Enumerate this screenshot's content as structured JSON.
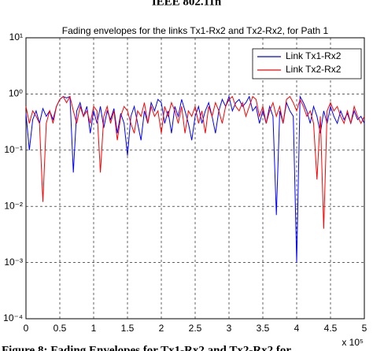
{
  "header_text": "IEEE 802.11n",
  "caption": "Figure 8: Fading Envelopes for Tx1-Rx2 and Tx2-Rx2 for",
  "chart_data": {
    "type": "line",
    "title": "Fading envelopes for the links Tx1-Rx2 and Tx2-Rx2, for Path 1",
    "x_exponent_label": "x 10⁵",
    "log_y": true,
    "grid": true,
    "legend": "upper right",
    "xlim": [
      0,
      5
    ],
    "xticks": [
      0,
      0.5,
      1,
      1.5,
      2,
      2.5,
      3,
      3.5,
      4,
      4.5,
      5
    ],
    "ylim": [
      0.0001,
      10
    ],
    "yticks": [
      {
        "value": 0.0001,
        "label": "10⁻⁴"
      },
      {
        "value": 0.001,
        "label": "10⁻³"
      },
      {
        "value": 0.01,
        "label": "10⁻²"
      },
      {
        "value": 0.1,
        "label": "10⁻¹"
      },
      {
        "value": 1,
        "label": "10⁰"
      },
      {
        "value": 10,
        "label": "10¹"
      }
    ],
    "x": [
      0,
      0.05,
      0.1,
      0.15,
      0.2,
      0.25,
      0.3,
      0.35,
      0.4,
      0.45,
      0.5,
      0.55,
      0.6,
      0.65,
      0.7,
      0.75,
      0.8,
      0.85,
      0.9,
      0.95,
      1,
      1.05,
      1.1,
      1.15,
      1.2,
      1.25,
      1.3,
      1.35,
      1.4,
      1.45,
      1.5,
      1.55,
      1.6,
      1.65,
      1.7,
      1.75,
      1.8,
      1.85,
      1.9,
      1.95,
      2,
      2.05,
      2.1,
      2.15,
      2.2,
      2.25,
      2.3,
      2.35,
      2.4,
      2.45,
      2.5,
      2.55,
      2.6,
      2.65,
      2.7,
      2.75,
      2.8,
      2.85,
      2.9,
      2.95,
      3,
      3.05,
      3.1,
      3.15,
      3.2,
      3.25,
      3.3,
      3.35,
      3.4,
      3.45,
      3.5,
      3.55,
      3.6,
      3.65,
      3.7,
      3.75,
      3.8,
      3.85,
      3.9,
      3.95,
      4,
      4.05,
      4.1,
      4.15,
      4.2,
      4.25,
      4.3,
      4.35,
      4.4,
      4.45,
      4.5,
      4.55,
      4.6,
      4.65,
      4.7,
      4.75,
      4.8,
      4.85,
      4.9,
      4.95,
      5
    ],
    "series": [
      {
        "name": "Link Tx1-Rx2",
        "color": "#0000ff",
        "values": [
          0.45,
          0.1,
          0.35,
          0.5,
          0.3,
          0.55,
          0.4,
          0.5,
          0.35,
          0.6,
          0.8,
          0.9,
          0.85,
          0.9,
          0.04,
          0.5,
          0.7,
          0.4,
          0.6,
          0.2,
          0.5,
          0.3,
          0.6,
          0.25,
          0.5,
          0.35,
          0.55,
          0.2,
          0.45,
          0.3,
          0.08,
          0.4,
          0.6,
          0.3,
          0.15,
          0.5,
          0.3,
          0.7,
          0.5,
          0.8,
          0.7,
          0.3,
          0.5,
          0.2,
          0.6,
          0.4,
          0.8,
          0.5,
          0.3,
          0.15,
          0.4,
          0.6,
          0.3,
          0.5,
          0.7,
          0.4,
          0.2,
          0.5,
          0.8,
          0.6,
          0.9,
          0.5,
          0.7,
          0.8,
          0.6,
          0.7,
          0.9,
          0.5,
          0.6,
          0.3,
          0.5,
          0.3,
          0.6,
          0.4,
          0.007,
          0.5,
          0.3,
          0.7,
          0.5,
          0.4,
          0.001,
          0.9,
          0.7,
          0.5,
          0.3,
          0.6,
          0.4,
          0.2,
          0.5,
          0.3,
          0.6,
          0.4,
          0.3,
          0.5,
          0.35,
          0.45,
          0.3,
          0.5,
          0.35,
          0.4,
          0.3
        ]
      },
      {
        "name": "Link Tx2-Rx2",
        "color": "#ff0000",
        "values": [
          0.6,
          0.3,
          0.5,
          0.4,
          0.3,
          0.012,
          0.3,
          0.5,
          0.3,
          0.6,
          0.8,
          0.9,
          0.7,
          0.9,
          0.5,
          0.3,
          0.6,
          0.4,
          0.5,
          0.3,
          0.6,
          0.5,
          0.04,
          0.4,
          0.6,
          0.3,
          0.5,
          0.15,
          0.4,
          0.6,
          0.5,
          0.3,
          0.2,
          0.5,
          0.4,
          0.7,
          0.3,
          0.6,
          0.4,
          0.5,
          0.2,
          0.6,
          0.4,
          0.7,
          0.5,
          0.3,
          0.6,
          0.2,
          0.5,
          0.4,
          0.6,
          0.3,
          0.5,
          0.2,
          0.6,
          0.4,
          0.7,
          0.5,
          0.3,
          0.6,
          0.8,
          0.9,
          0.6,
          0.5,
          0.7,
          0.4,
          0.6,
          0.9,
          0.8,
          0.4,
          0.6,
          0.3,
          0.5,
          0.7,
          0.4,
          0.6,
          0.3,
          0.8,
          0.9,
          0.7,
          0.5,
          0.8,
          0.6,
          0.4,
          0.5,
          0.3,
          0.03,
          0.4,
          0.004,
          0.5,
          0.7,
          0.5,
          0.6,
          0.4,
          0.3,
          0.5,
          0.3,
          0.6,
          0.4,
          0.3,
          0.4
        ]
      }
    ]
  }
}
